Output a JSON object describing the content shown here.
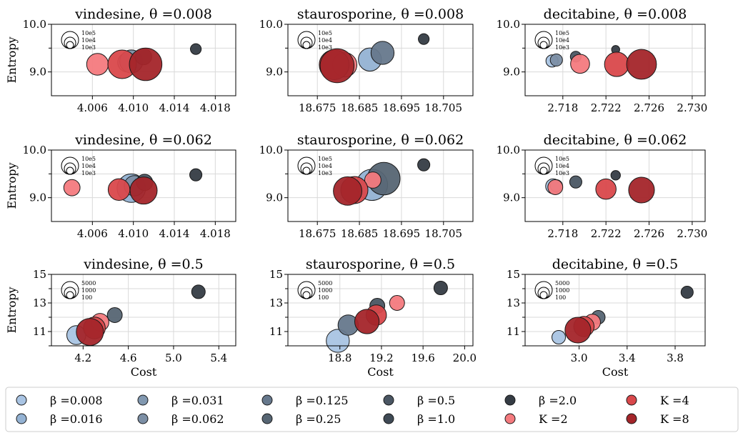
{
  "chart_data": {
    "type": "scatter",
    "ylabel": "Entropy",
    "xlabel": "Cost",
    "colors": {
      "beta=0.008": "#a9c4e3",
      "beta=0.016": "#94b2d3",
      "beta=0.031": "#8198b0",
      "beta=0.062": "#7c8fa5",
      "beta=0.125": "#66788c",
      "beta=0.25": "#566573",
      "beta=0.5": "#4a5663",
      "beta=1.0": "#3f4a55",
      "beta=2.0": "#353c44",
      "K=2": "#f47a7e",
      "K=4": "#d9484b",
      "K=8": "#a4252a"
    },
    "legend": [
      {
        "key": "beta=0.008",
        "label": "β =0.008"
      },
      {
        "key": "beta=0.016",
        "label": "β =0.016"
      },
      {
        "key": "beta=0.031",
        "label": "β =0.031"
      },
      {
        "key": "beta=0.062",
        "label": "β =0.062"
      },
      {
        "key": "beta=0.125",
        "label": "β =0.125"
      },
      {
        "key": "beta=0.25",
        "label": "β =0.25"
      },
      {
        "key": "beta=0.5",
        "label": "β =0.5"
      },
      {
        "key": "beta=1.0",
        "label": "β =1.0"
      },
      {
        "key": "beta=2.0",
        "label": "β =2.0"
      },
      {
        "key": "K=2",
        "label": "K =2"
      },
      {
        "key": "K=4",
        "label": "K =4"
      },
      {
        "key": "K=8",
        "label": "K =8"
      }
    ],
    "panels": [
      {
        "title": "vindesine, θ =0.008",
        "xlim": [
          4.002,
          4.02
        ],
        "ylim": [
          8.5,
          10.0
        ],
        "xticks": [
          "4.006",
          "4.010",
          "4.014",
          "4.018"
        ],
        "xtickvals": [
          4.006,
          4.01,
          4.014,
          4.018
        ],
        "yticks": [
          "9.0",
          "10.0"
        ],
        "ytickvals": [
          9.0,
          10.0
        ],
        "yminor": [
          9.5
        ],
        "size_legend": [
          "10e5",
          "10e4",
          "10e3"
        ],
        "points": [
          {
            "k": "beta=0.008",
            "x": 4.0094,
            "y": 9.2,
            "s": 1.4
          },
          {
            "k": "beta=0.062",
            "x": 4.0098,
            "y": 9.22,
            "s": 1.7
          },
          {
            "k": "beta=0.5",
            "x": 4.011,
            "y": 9.32,
            "s": 1.2
          },
          {
            "k": "beta=2.0",
            "x": 4.0161,
            "y": 9.48,
            "s": 0.8
          },
          {
            "k": "K=2",
            "x": 4.0065,
            "y": 9.16,
            "s": 1.6
          },
          {
            "k": "K=4",
            "x": 4.0089,
            "y": 9.16,
            "s": 2.1
          },
          {
            "k": "K=8",
            "x": 4.0112,
            "y": 9.16,
            "s": 2.4
          }
        ]
      },
      {
        "title": "staurosporine, θ =0.008",
        "xlim": [
          18.668,
          18.712
        ],
        "ylim": [
          8.5,
          10.0
        ],
        "xticks": [
          "18.675",
          "18.685",
          "18.695",
          "18.705"
        ],
        "xtickvals": [
          18.675,
          18.685,
          18.695,
          18.705
        ],
        "yticks": [
          "9.0",
          "10.0"
        ],
        "ytickvals": [
          9.0,
          10.0
        ],
        "yminor": [
          9.5
        ],
        "size_legend": [
          "10e5",
          "10e4",
          "10e3"
        ],
        "points": [
          {
            "k": "beta=0.016",
            "x": 18.6875,
            "y": 9.26,
            "s": 1.7
          },
          {
            "k": "beta=0.125",
            "x": 18.6905,
            "y": 9.4,
            "s": 1.7
          },
          {
            "k": "beta=2.0",
            "x": 18.7003,
            "y": 9.69,
            "s": 0.8
          },
          {
            "k": "K=2",
            "x": 18.6815,
            "y": 9.15,
            "s": 1.8
          },
          {
            "k": "K=4",
            "x": 18.679,
            "y": 9.15,
            "s": 2.2
          },
          {
            "k": "K=8",
            "x": 18.6797,
            "y": 9.13,
            "s": 2.5
          }
        ]
      },
      {
        "title": "decitabine, θ =0.008",
        "xlim": [
          2.7145,
          2.7312
        ],
        "ylim": [
          8.5,
          10.0
        ],
        "xticks": [
          "2.718",
          "2.722",
          "2.726",
          "2.730"
        ],
        "xtickvals": [
          2.718,
          2.722,
          2.726,
          2.73
        ],
        "yticks": [
          "9.0",
          "10.0"
        ],
        "ytickvals": [
          9.0,
          10.0
        ],
        "yminor": [
          9.5
        ],
        "size_legend": [
          "10e5",
          "10e4",
          "10e3"
        ],
        "points": [
          {
            "k": "beta=0.008",
            "x": 2.717,
            "y": 9.23,
            "s": 0.9
          },
          {
            "k": "beta=0.062",
            "x": 2.7174,
            "y": 9.25,
            "s": 0.9
          },
          {
            "k": "beta=0.5",
            "x": 2.7192,
            "y": 9.32,
            "s": 0.8
          },
          {
            "k": "beta=2.0",
            "x": 2.7229,
            "y": 9.47,
            "s": 0.6
          },
          {
            "k": "K=2",
            "x": 2.7196,
            "y": 9.17,
            "s": 1.4
          },
          {
            "k": "K=4",
            "x": 2.723,
            "y": 9.16,
            "s": 1.8
          },
          {
            "k": "K=8",
            "x": 2.7253,
            "y": 9.16,
            "s": 2.2
          }
        ]
      },
      {
        "title": "vindesine, θ =0.062",
        "xlim": [
          4.002,
          4.02
        ],
        "ylim": [
          8.5,
          10.0
        ],
        "xticks": [
          "4.006",
          "4.010",
          "4.014",
          "4.018"
        ],
        "xtickvals": [
          4.006,
          4.01,
          4.014,
          4.018
        ],
        "yticks": [
          "9.0",
          "10.0"
        ],
        "ytickvals": [
          9.0,
          10.0
        ],
        "yminor": [
          9.5
        ],
        "size_legend": [
          "10e5",
          "10e4",
          "10e3"
        ],
        "points": [
          {
            "k": "beta=0.016",
            "x": 4.0098,
            "y": 9.2,
            "s": 2.1
          },
          {
            "k": "beta=0.062",
            "x": 4.0101,
            "y": 9.25,
            "s": 1.5
          },
          {
            "k": "beta=0.5",
            "x": 4.0111,
            "y": 9.32,
            "s": 1.2
          },
          {
            "k": "beta=2.0",
            "x": 4.0161,
            "y": 9.48,
            "s": 0.9
          },
          {
            "k": "K=2",
            "x": 4.004,
            "y": 9.21,
            "s": 1.2
          },
          {
            "k": "K=4",
            "x": 4.0086,
            "y": 9.17,
            "s": 1.6
          },
          {
            "k": "K=8",
            "x": 4.011,
            "y": 9.15,
            "s": 2.0
          }
        ]
      },
      {
        "title": "staurosporine, θ =0.062",
        "xlim": [
          18.668,
          18.712
        ],
        "ylim": [
          8.5,
          10.0
        ],
        "xticks": [
          "18.675",
          "18.685",
          "18.695",
          "18.705"
        ],
        "xtickvals": [
          18.675,
          18.685,
          18.695,
          18.705
        ],
        "yticks": [
          "9.0",
          "10.0"
        ],
        "ytickvals": [
          9.0,
          10.0
        ],
        "yminor": [
          9.5
        ],
        "size_legend": [
          "10e5",
          "10e4",
          "10e3"
        ],
        "points": [
          {
            "k": "beta=0.016",
            "x": 18.688,
            "y": 9.27,
            "s": 2.3
          },
          {
            "k": "beta=0.25",
            "x": 18.6908,
            "y": 9.4,
            "s": 2.4
          },
          {
            "k": "beta=2.0",
            "x": 18.7003,
            "y": 9.69,
            "s": 0.9
          },
          {
            "k": "K=2",
            "x": 18.6882,
            "y": 9.37,
            "s": 1.2
          },
          {
            "k": "K=4",
            "x": 18.6838,
            "y": 9.16,
            "s": 2.0
          },
          {
            "k": "K=8",
            "x": 18.6822,
            "y": 9.14,
            "s": 2.1
          }
        ]
      },
      {
        "title": "decitabine, θ =0.062",
        "xlim": [
          2.7145,
          2.7312
        ],
        "ylim": [
          8.5,
          10.0
        ],
        "xticks": [
          "2.718",
          "2.722",
          "2.726",
          "2.730"
        ],
        "xtickvals": [
          2.718,
          2.722,
          2.726,
          2.73
        ],
        "yticks": [
          "9.0",
          "10.0"
        ],
        "ytickvals": [
          9.0,
          10.0
        ],
        "yminor": [
          9.5
        ],
        "size_legend": [
          "10e5",
          "10e4",
          "10e3"
        ],
        "points": [
          {
            "k": "beta=0.008",
            "x": 2.7171,
            "y": 9.24,
            "s": 1.1
          },
          {
            "k": "beta=0.062",
            "x": 2.7174,
            "y": 9.25,
            "s": 0.9
          },
          {
            "k": "beta=0.5",
            "x": 2.7192,
            "y": 9.33,
            "s": 0.9
          },
          {
            "k": "beta=2.0",
            "x": 2.7229,
            "y": 9.47,
            "s": 0.7
          },
          {
            "k": "K=2",
            "x": 2.7173,
            "y": 9.22,
            "s": 1.1
          },
          {
            "k": "K=4",
            "x": 2.722,
            "y": 9.18,
            "s": 1.5
          },
          {
            "k": "K=8",
            "x": 2.7253,
            "y": 9.16,
            "s": 1.9
          }
        ]
      },
      {
        "title": "vindesine, θ =0.5",
        "xlim": [
          3.92,
          5.55
        ],
        "ylim": [
          10.0,
          15.0
        ],
        "xticks": [
          "4.2",
          "4.6",
          "5.0",
          "5.4"
        ],
        "xtickvals": [
          4.2,
          4.6,
          5.0,
          5.4
        ],
        "yticks": [
          "11",
          "13",
          "15"
        ],
        "ytickvals": [
          11,
          13,
          15
        ],
        "yminor": [
          10,
          12,
          14
        ],
        "size_legend": [
          "5000",
          "1000",
          "100"
        ],
        "points": [
          {
            "k": "beta=0.008",
            "x": 4.14,
            "y": 10.75,
            "s": 1.4
          },
          {
            "k": "beta=0.25",
            "x": 4.48,
            "y": 12.15,
            "s": 1.1
          },
          {
            "k": "beta=2.0",
            "x": 5.22,
            "y": 13.78,
            "s": 1.0
          },
          {
            "k": "K=2",
            "x": 4.35,
            "y": 11.65,
            "s": 1.3
          },
          {
            "k": "K=4",
            "x": 4.3,
            "y": 11.25,
            "s": 1.6
          },
          {
            "k": "K=8",
            "x": 4.26,
            "y": 10.97,
            "s": 2.0
          }
        ]
      },
      {
        "title": "staurosporine, θ =0.5",
        "xlim": [
          18.3,
          20.08
        ],
        "ylim": [
          10.0,
          15.0
        ],
        "xticks": [
          "18.8",
          "19.2",
          "19.6",
          "20.0"
        ],
        "xtickvals": [
          18.8,
          19.2,
          19.6,
          20.0
        ],
        "yticks": [
          "11",
          "13",
          "15"
        ],
        "ytickvals": [
          11,
          13,
          15
        ],
        "yminor": [
          10,
          12,
          14
        ],
        "size_legend": [
          "5000",
          "1000",
          "100"
        ],
        "points": [
          {
            "k": "beta=0.008",
            "x": 18.78,
            "y": 10.35,
            "s": 1.7
          },
          {
            "k": "beta=0.125",
            "x": 18.88,
            "y": 11.45,
            "s": 1.5
          },
          {
            "k": "beta=0.5",
            "x": 19.16,
            "y": 12.8,
            "s": 1.1
          },
          {
            "k": "beta=2.0",
            "x": 19.77,
            "y": 14.05,
            "s": 1.0
          },
          {
            "k": "K=2",
            "x": 19.35,
            "y": 13.0,
            "s": 1.1
          },
          {
            "k": "K=4",
            "x": 19.15,
            "y": 12.15,
            "s": 1.5
          },
          {
            "k": "K=8",
            "x": 19.06,
            "y": 11.7,
            "s": 1.8
          }
        ]
      },
      {
        "title": "decitabine, θ =0.5",
        "xlim": [
          2.55,
          4.05
        ],
        "ylim": [
          10.0,
          15.0
        ],
        "xticks": [
          "3.0",
          "3.4",
          "3.8"
        ],
        "xtickvals": [
          3.0,
          3.4,
          3.8
        ],
        "yticks": [
          "11",
          "13",
          "15"
        ],
        "ytickvals": [
          11,
          13,
          15
        ],
        "yminor": [
          10,
          12,
          14
        ],
        "size_legend": [
          "5000",
          "1000",
          "100"
        ],
        "points": [
          {
            "k": "beta=0.008",
            "x": 2.83,
            "y": 10.6,
            "s": 1.0
          },
          {
            "k": "beta=0.25",
            "x": 3.16,
            "y": 12.0,
            "s": 1.0
          },
          {
            "k": "beta=2.0",
            "x": 3.9,
            "y": 13.75,
            "s": 0.9
          },
          {
            "k": "K=2",
            "x": 3.11,
            "y": 11.65,
            "s": 1.2
          },
          {
            "k": "K=4",
            "x": 3.04,
            "y": 11.35,
            "s": 1.5
          },
          {
            "k": "K=8",
            "x": 2.99,
            "y": 11.1,
            "s": 1.9
          }
        ]
      }
    ]
  }
}
